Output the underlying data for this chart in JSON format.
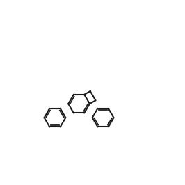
{
  "bg_color": "#ffffff",
  "line_color": "#1a1a1a",
  "nitrogen_color": "#1a4fbf",
  "line_width": 1.5,
  "figsize": [
    2.66,
    2.66
  ],
  "dpi": 100
}
